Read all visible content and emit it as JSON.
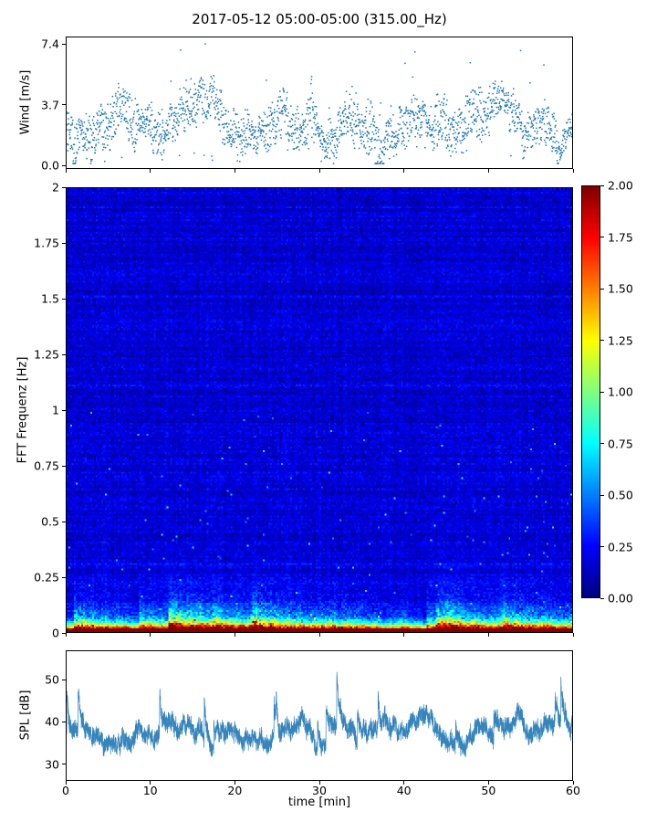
{
  "title": "2017-05-12 05:00-05:00 (315.00_Hz)",
  "colors": {
    "series_blue": "#1f77b4",
    "axis": "#000000",
    "background": "#ffffff"
  },
  "chart_data": [
    {
      "type": "scatter",
      "name": "wind-speed",
      "ylabel": "Wind [m/s]",
      "ylim": [
        -0.2,
        7.85
      ],
      "xlim": [
        0,
        60
      ],
      "tick_values": [
        0.0,
        3.7,
        7.4
      ],
      "tick_labels": [
        "0.0",
        "3.7",
        "7.4"
      ],
      "marker_color": "#1f77b4",
      "value_range_observed": [
        0.1,
        7.4
      ],
      "typical_value": 2.6,
      "synth": {
        "n": 2200,
        "seed": 20170512
      }
    },
    {
      "type": "heatmap",
      "name": "fft-spectrogram",
      "ylabel": "FFT Frequenz [Hz]",
      "ylim": [
        0,
        2
      ],
      "xlim": [
        0,
        60
      ],
      "tick_values": [
        0,
        0.25,
        0.5,
        0.75,
        1,
        1.25,
        1.5,
        1.75,
        2
      ],
      "tick_labels": [
        "0",
        "0.25",
        "0.5",
        "0.75",
        "1",
        "1.25",
        "1.5",
        "1.75",
        "2"
      ],
      "colormap": "jet",
      "clim": [
        0,
        2
      ],
      "content_summary": "mostly low values (dark blue) above 0.3 Hz; strong energy (green/yellow/red, up to 2.0) below 0.25 Hz; continuous near-2.0 band at lowest frequencies",
      "synth": {
        "cols": 278,
        "rows": 244,
        "seed": 315
      }
    },
    {
      "type": "line",
      "name": "spl",
      "ylabel": "SPL [dB]",
      "xlabel": "time [min]",
      "ylim": [
        26,
        57
      ],
      "xlim": [
        0,
        60
      ],
      "tick_values": [
        30,
        40,
        50
      ],
      "tick_labels": [
        "30",
        "40",
        "50"
      ],
      "xtick_values": [
        0,
        10,
        20,
        30,
        40,
        50,
        60
      ],
      "xtick_labels": [
        "0",
        "10",
        "20",
        "30",
        "40",
        "50",
        "60"
      ],
      "line_color": "#1f77b4",
      "value_range_observed": [
        28,
        55
      ],
      "typical_value": 38,
      "synth": {
        "n": 4000,
        "seed": 99
      }
    }
  ],
  "colorbar": {
    "colormap": "jet",
    "min": 0,
    "max": 2,
    "tick_values": [
      0,
      0.25,
      0.5,
      0.75,
      1,
      1.25,
      1.5,
      1.75,
      2
    ],
    "tick_labels": [
      "0.00",
      "0.25",
      "0.50",
      "0.75",
      "1.00",
      "1.25",
      "1.50",
      "1.75",
      "2.00"
    ]
  }
}
